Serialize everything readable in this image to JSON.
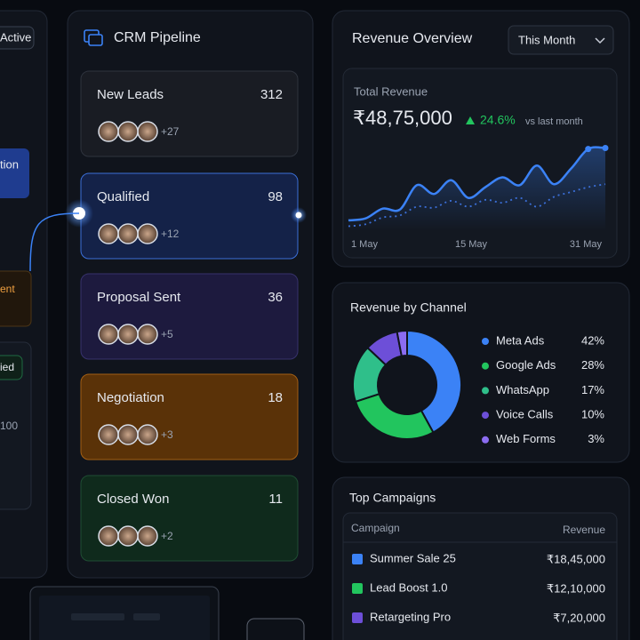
{
  "left_panel": {
    "badge": "Active",
    "texts": [
      "tion",
      "ent",
      "ied",
      "100"
    ]
  },
  "pipeline": {
    "title": "CRM Pipeline",
    "stages": [
      {
        "name": "New Leads",
        "count": 312,
        "extra": "+27"
      },
      {
        "name": "Qualified",
        "count": 98,
        "extra": "+12"
      },
      {
        "name": "Proposal Sent",
        "count": 36,
        "extra": "+5"
      },
      {
        "name": "Negotiation",
        "count": 18,
        "extra": "+3"
      },
      {
        "name": "Closed Won",
        "count": 11,
        "extra": "+2"
      }
    ]
  },
  "revenue_overview": {
    "title": "Revenue Overview",
    "dropdown": "This Month",
    "total_label": "Total Revenue",
    "total": "₹48,75,000",
    "change": "24.6%",
    "change_note": "vs last month",
    "chart": {
      "type": "line",
      "x_labels": [
        "1 May",
        "15 May",
        "31 May"
      ],
      "ylim": [
        0,
        100
      ],
      "series": [
        {
          "color": "#3b82f6",
          "values": [
            11,
            13,
            23,
            22,
            47,
            38,
            52,
            34,
            45,
            55,
            47,
            67,
            48,
            64,
            84,
            85
          ]
        },
        {
          "color": "#3b6fd8",
          "values": [
            5,
            7,
            14,
            16,
            25,
            24,
            31,
            25,
            32,
            29,
            34,
            25,
            35,
            40,
            45,
            48
          ]
        }
      ]
    }
  },
  "channels": {
    "title": "Revenue by Channel",
    "type": "pie",
    "items": [
      {
        "name": "Meta Ads",
        "value": 42,
        "value_label": "42%",
        "color": "#3b82f6"
      },
      {
        "name": "Google Ads",
        "value": 28,
        "value_label": "28%",
        "color": "#22c55e"
      },
      {
        "name": "WhatsApp",
        "value": 17,
        "value_label": "17%",
        "color": "#2fbf8a"
      },
      {
        "name": "Voice Calls",
        "value": 10,
        "value_label": "10%",
        "color": "#6d4fd8"
      },
      {
        "name": "Web Forms",
        "value": 3,
        "value_label": "3%",
        "color": "#8b6cf0"
      }
    ]
  },
  "campaigns": {
    "title": "Top Campaigns",
    "columns": [
      "Campaign",
      "Revenue"
    ],
    "rows": [
      {
        "name": "Summer Sale 25",
        "revenue": "₹18,45,000",
        "color": "#3b82f6"
      },
      {
        "name": "Lead Boost 1.0",
        "revenue": "₹12,10,000",
        "color": "#22c55e"
      },
      {
        "name": "Retargeting Pro",
        "revenue": "₹7,20,000",
        "color": "#6d4fd8"
      }
    ]
  }
}
